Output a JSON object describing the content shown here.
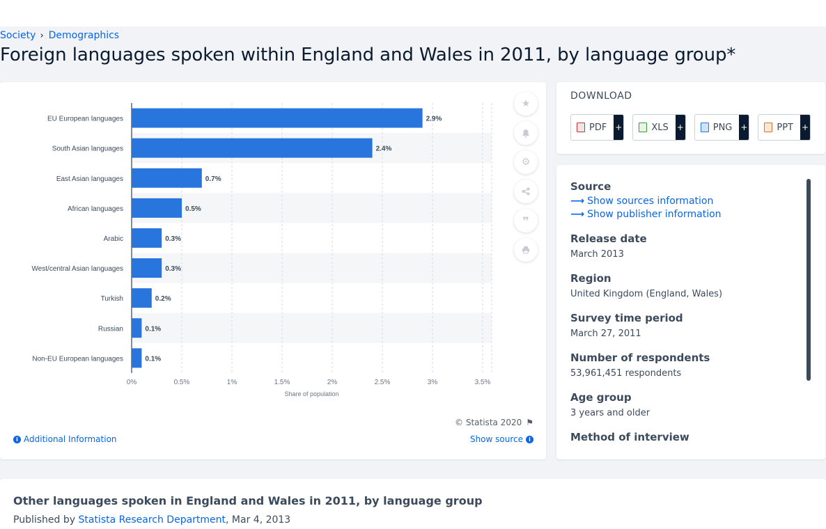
{
  "breadcrumb": {
    "item1": "Society",
    "item2": "Demographics"
  },
  "page_title": "Foreign languages spoken within England and Wales in 2011, by language group*",
  "chart_data": {
    "type": "bar",
    "orientation": "horizontal",
    "categories": [
      "EU European languages",
      "South Asian languages",
      "East Asian languages",
      "African languages",
      "Arabic",
      "West/central Asian languages",
      "Turkish",
      "Russian",
      "Non-EU European languages"
    ],
    "values": [
      2.9,
      2.4,
      0.7,
      0.5,
      0.3,
      0.3,
      0.2,
      0.1,
      0.1
    ],
    "value_labels": [
      "2.9%",
      "2.4%",
      "0.7%",
      "0.5%",
      "0.3%",
      "0.3%",
      "0.2%",
      "0.1%",
      "0.1%"
    ],
    "xlabel": "Share of population",
    "xticks": [
      "0%",
      "0.5%",
      "1%",
      "1.5%",
      "2%",
      "2.5%",
      "3%",
      "3.5%"
    ],
    "xlim": [
      0,
      3.5
    ],
    "bar_color": "#2876dd",
    "grid": true
  },
  "chart_footer": {
    "copyright": "© Statista 2020",
    "additional_info": "Additional Information",
    "show_source": "Show source"
  },
  "download": {
    "title": "DOWNLOAD",
    "formats": [
      "PDF",
      "XLS",
      "PNG",
      "PPT"
    ],
    "plus": "+"
  },
  "info": {
    "source_label": "Source",
    "show_sources": "Show sources information",
    "show_publisher": "Show publisher information",
    "release_date_label": "Release date",
    "release_date": "March 2013",
    "region_label": "Region",
    "region": "United Kingdom (England, Wales)",
    "survey_label": "Survey time period",
    "survey": "March 27, 2011",
    "respondents_label": "Number of respondents",
    "respondents": "53,961,451 respondents",
    "age_label": "Age group",
    "age": "3 years and older",
    "method_label": "Method of interview"
  },
  "related": {
    "title": "Other languages spoken in England and Wales in 2011, by language group",
    "published_prefix": "Published by",
    "publisher": "Statista Research Department",
    "date": ", Mar 4, 2013"
  }
}
